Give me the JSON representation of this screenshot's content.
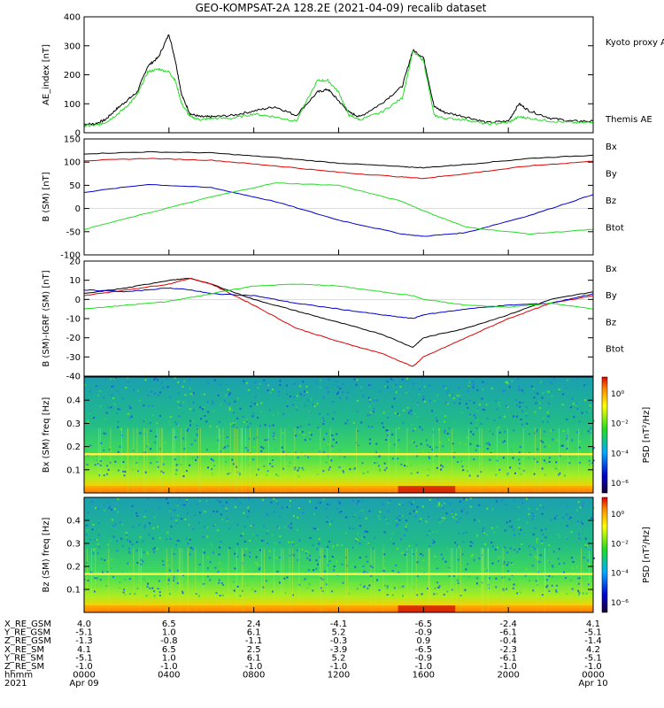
{
  "title": "GEO-KOMPSAT-2A 128.2E (2021-04-09) recalib dataset",
  "chart_data": [
    {
      "type": "line",
      "ylabel": "AE_index [nT]",
      "ylim": [
        0,
        400
      ],
      "yticks": [
        "0",
        "100",
        "200",
        "300",
        "400"
      ],
      "legend": [
        "Kyoto proxy AE",
        "Themis AE"
      ],
      "series": [
        {
          "name": "Themis AE",
          "color": "#000000",
          "x": [
            0,
            0.5,
            1,
            1.5,
            2,
            2.5,
            3,
            3.5,
            4,
            4.3,
            4.6,
            5,
            5.5,
            6,
            7,
            8,
            9,
            10,
            11,
            11.5,
            12,
            12.5,
            13,
            14,
            15,
            15.5,
            16,
            16.5,
            17,
            18,
            19,
            20,
            20.5,
            21,
            22,
            23,
            24
          ],
          "y": [
            30,
            30,
            45,
            80,
            110,
            140,
            230,
            260,
            340,
            250,
            130,
            65,
            55,
            55,
            60,
            75,
            90,
            60,
            140,
            150,
            110,
            70,
            55,
            100,
            160,
            285,
            260,
            90,
            70,
            55,
            35,
            40,
            100,
            75,
            50,
            40,
            40
          ]
        },
        {
          "name": "Kyoto proxy AE",
          "color": "#22dd22",
          "x": [
            0,
            0.5,
            1,
            1.5,
            2,
            2.5,
            3,
            3.5,
            4,
            4.3,
            4.6,
            5,
            5.5,
            6,
            7,
            8,
            9,
            10,
            11,
            11.5,
            12,
            12.5,
            13,
            14,
            15,
            15.5,
            16,
            16.5,
            17,
            18,
            19,
            20,
            20.5,
            21,
            22,
            23,
            24
          ],
          "y": [
            25,
            25,
            35,
            60,
            90,
            130,
            210,
            220,
            210,
            180,
            100,
            55,
            45,
            50,
            50,
            65,
            55,
            40,
            180,
            180,
            140,
            60,
            45,
            70,
            120,
            280,
            250,
            60,
            50,
            45,
            30,
            35,
            55,
            50,
            40,
            35,
            35
          ]
        }
      ]
    },
    {
      "type": "line",
      "ylabel": "B (SM) [nT]",
      "ylim": [
        -100,
        150
      ],
      "yticks": [
        "-100",
        "-50",
        "0",
        "50",
        "100",
        "150"
      ],
      "legend": [
        "Bx",
        "By",
        "Bz",
        "Btot"
      ],
      "series": [
        {
          "name": "Btot",
          "color": "#000000",
          "x": [
            0,
            3,
            6,
            9,
            12,
            15,
            16,
            18,
            21,
            24
          ],
          "y": [
            118,
            122,
            120,
            110,
            98,
            90,
            88,
            95,
            108,
            115
          ]
        },
        {
          "name": "Bz",
          "color": "#dd0000",
          "x": [
            0,
            3,
            6,
            9,
            12,
            15,
            16,
            18,
            21,
            24
          ],
          "y": [
            103,
            108,
            104,
            92,
            78,
            68,
            65,
            75,
            92,
            102
          ]
        },
        {
          "name": "Bx",
          "color": "#0000cc",
          "x": [
            0,
            3,
            6,
            9,
            12,
            15,
            16,
            18,
            21,
            24
          ],
          "y": [
            35,
            52,
            45,
            15,
            -25,
            -55,
            -60,
            -52,
            -15,
            30
          ]
        },
        {
          "name": "By",
          "color": "#22dd22",
          "x": [
            0,
            3,
            6,
            9,
            12,
            15,
            16,
            18,
            21,
            24
          ],
          "y": [
            -45,
            -10,
            25,
            55,
            50,
            15,
            -5,
            -40,
            -55,
            -45
          ]
        }
      ]
    },
    {
      "type": "line",
      "ylabel": "B (SM)-IGRF (SM) [nT]",
      "ylim": [
        -40,
        20
      ],
      "yticks": [
        "-40",
        "-30",
        "-20",
        "-10",
        "0",
        "10",
        "20"
      ],
      "legend": [
        "Bx",
        "By",
        "Bz",
        "Btot"
      ],
      "series": [
        {
          "name": "Btot",
          "color": "#000000",
          "x": [
            0,
            2,
            4,
            5,
            6,
            8,
            10,
            12,
            14,
            15.5,
            16,
            18,
            20,
            22,
            24
          ],
          "y": [
            3,
            6,
            10,
            11,
            8,
            0,
            -6,
            -12,
            -18,
            -25,
            -20,
            -15,
            -8,
            0,
            4
          ]
        },
        {
          "name": "Bz",
          "color": "#dd0000",
          "x": [
            0,
            2,
            4,
            5,
            6,
            8,
            10,
            12,
            14,
            15.5,
            16,
            18,
            20,
            22,
            24
          ],
          "y": [
            2,
            5,
            8,
            11,
            8,
            -3,
            -15,
            -22,
            -28,
            -35,
            -30,
            -20,
            -10,
            -2,
            2
          ]
        },
        {
          "name": "Bx",
          "color": "#0000cc",
          "x": [
            0,
            2,
            4,
            5,
            6,
            8,
            10,
            12,
            14,
            15.5,
            16,
            18,
            20,
            22,
            24
          ],
          "y": [
            5,
            4,
            6,
            5,
            3,
            2,
            -2,
            -5,
            -8,
            -10,
            -8,
            -5,
            -3,
            -2,
            3
          ]
        },
        {
          "name": "By",
          "color": "#22dd22",
          "x": [
            0,
            2,
            4,
            5,
            6,
            8,
            10,
            12,
            14,
            15.5,
            16,
            18,
            20,
            22,
            24
          ],
          "y": [
            -5,
            -3,
            -1,
            1,
            3,
            7,
            8,
            7,
            4,
            2,
            0,
            -3,
            -4,
            -2,
            -5
          ]
        }
      ]
    },
    {
      "type": "heatmap",
      "ylabel": "Bx (SM) freq [Hz]",
      "ylim": [
        0,
        0.5
      ],
      "yticks": [
        "0.1",
        "0.2",
        "0.3",
        "0.4"
      ],
      "colorbar_label": "PSD [nT²/Hz]",
      "colorbar_ticks": [
        "10⁰",
        "10⁻²",
        "10⁻⁴",
        "10⁻⁶"
      ],
      "feature_line_hz": 0.167
    },
    {
      "type": "heatmap",
      "ylabel": "Bz (SM) freq [Hz]",
      "ylim": [
        0,
        0.5
      ],
      "yticks": [
        "0.1",
        "0.2",
        "0.3",
        "0.4"
      ],
      "colorbar_label": "PSD [nT²/Hz]",
      "colorbar_ticks": [
        "10⁰",
        "10⁻²",
        "10⁻⁴",
        "10⁻⁶"
      ],
      "feature_line_hz": 0.167
    }
  ],
  "xaxis": {
    "rows": [
      {
        "label": "X_RE_GSM",
        "values": [
          "4.0",
          "6.5",
          "2.4",
          "-4.1",
          "-6.5",
          "-2.4",
          "4.1"
        ]
      },
      {
        "label": "Y_RE_GSM",
        "values": [
          "-5.1",
          "1.0",
          "6.1",
          "5.2",
          "-0.9",
          "-6.1",
          "-5.1"
        ]
      },
      {
        "label": "Z_RE_GSM",
        "values": [
          "-1.3",
          "-0.8",
          "-1.1",
          "-0.3",
          "0.9",
          "-0.4",
          "-1.4"
        ]
      },
      {
        "label": "X_RE_SM",
        "values": [
          "4.1",
          "6.5",
          "2.5",
          "-3.9",
          "-6.5",
          "-2.3",
          "4.2"
        ]
      },
      {
        "label": "Y_RE_SM",
        "values": [
          "-5.1",
          "1.0",
          "6.1",
          "5.2",
          "-0.9",
          "-6.1",
          "-5.1"
        ]
      },
      {
        "label": "Z_RE_SM",
        "values": [
          "-1.0",
          "-1.0",
          "-1.0",
          "-1.0",
          "-1.0",
          "-1.0",
          "-1.0"
        ]
      },
      {
        "label": "hhmm",
        "values": [
          "0000",
          "0400",
          "0800",
          "1200",
          "1600",
          "2000",
          "0000"
        ]
      },
      {
        "label": "2021",
        "values": [
          "Apr 09",
          "",
          "",
          "",
          "",
          "",
          "Apr 10"
        ]
      }
    ],
    "hours": [
      0,
      4,
      8,
      12,
      16,
      20,
      24
    ]
  }
}
